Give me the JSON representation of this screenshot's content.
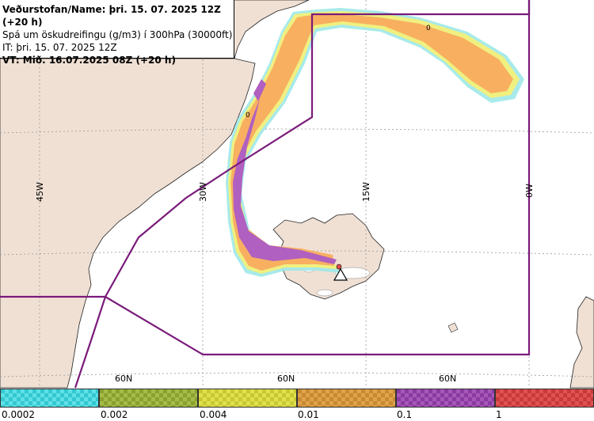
{
  "header": {
    "line1": "Veðurstofan/Name: þri. 15. 07. 2025 12Z (+20 h)",
    "line2": "Spá um öskudreifingu (g/m3) í 300hPa (30000ft)",
    "line3": "IT: þri. 15. 07. 2025 12Z",
    "line4": "VT: Mið. 16.07.2025 08Z (+20 h)"
  },
  "grid_labels": {
    "lon": [
      "45W",
      "30W",
      "15W",
      "0W"
    ],
    "lat": [
      "60N",
      "60N",
      "60N"
    ]
  },
  "contour_labels": [
    "0",
    "0"
  ],
  "legend": {
    "ticks": [
      "0.0002",
      "0.002",
      "0.004",
      "0.01",
      "0.1",
      "1"
    ],
    "colors": [
      {
        "main": "#33c8d0",
        "alt": "#5fe0e6"
      },
      {
        "main": "#8aa030",
        "alt": "#a6bc48"
      },
      {
        "main": "#c8c830",
        "alt": "#e0e050"
      },
      {
        "main": "#c88a30",
        "alt": "#e0a24a"
      },
      {
        "main": "#8a3aa0",
        "alt": "#a658b8"
      },
      {
        "main": "#c83a3a",
        "alt": "#e05252"
      }
    ]
  },
  "map_colors": {
    "land": "#f0e0d4",
    "sea": "#ffffff",
    "boundary": "#7a1a7a",
    "ash_orange": "#f8b060",
    "ash_purple": "#b060c0",
    "ash_yellow": "#f0f080",
    "ash_cyan": "#9ee8e8"
  },
  "icons": {
    "volcano": "volcano-triangle-icon"
  }
}
